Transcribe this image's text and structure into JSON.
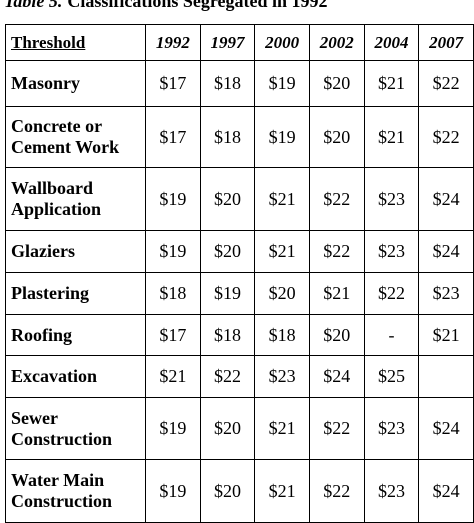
{
  "caption": {
    "label": "Table 5.",
    "text": "Classifications Segregated in 1992"
  },
  "table": {
    "header": [
      "Threshold",
      "1992",
      "1997",
      "2000",
      "2002",
      "2004",
      "2007"
    ],
    "rows": [
      [
        "Masonry",
        "$17",
        "$18",
        "$19",
        "$20",
        "$21",
        "$22"
      ],
      [
        "Concrete or Cement Work",
        "$17",
        "$18",
        "$19",
        "$20",
        "$21",
        "$22"
      ],
      [
        "Wallboard Application",
        "$19",
        "$20",
        "$21",
        "$22",
        "$23",
        "$24"
      ],
      [
        "Glaziers",
        "$19",
        "$20",
        "$21",
        "$22",
        "$23",
        "$24"
      ],
      [
        "Plastering",
        "$18",
        "$19",
        "$20",
        "$21",
        "$22",
        "$23"
      ],
      [
        "Roofing",
        "$17",
        "$18",
        "$18",
        "$20",
        "-",
        "$21"
      ],
      [
        "Excavation",
        "$21",
        "$22",
        "$23",
        "$24",
        "$25",
        null
      ],
      [
        "Sewer Construction",
        "$19",
        "$20",
        "$21",
        "$22",
        "$23",
        "$24"
      ],
      [
        "Water Main Construction",
        "$19",
        "$20",
        "$21",
        "$22",
        "$23",
        "$24"
      ]
    ]
  }
}
